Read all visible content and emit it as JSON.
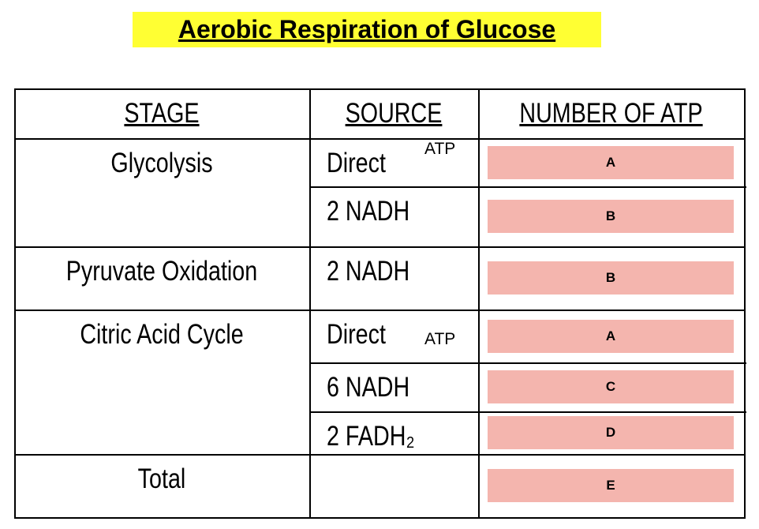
{
  "title": "Aerobic Respiration of Glucose",
  "table": {
    "headers": [
      "STAGE",
      "SOURCE",
      "NUMBER OF ATP"
    ],
    "stages": [
      {
        "stage": "Glycolysis",
        "sources": [
          {
            "source": "Direct",
            "note": "ATP",
            "answer": "A"
          },
          {
            "source": "2 NADH",
            "answer": "B"
          }
        ]
      },
      {
        "stage": "Pyruvate Oxidation",
        "sources": [
          {
            "source": "2 NADH",
            "answer": "B"
          }
        ]
      },
      {
        "stage": "Citric Acid Cycle",
        "sources": [
          {
            "source": "Direct",
            "note": "ATP",
            "answer": "A"
          },
          {
            "source": "6 NADH",
            "answer": "C"
          },
          {
            "source": "2 FADH₂",
            "answer": "D"
          }
        ]
      },
      {
        "stage": "Total",
        "sources": [
          {
            "answer": "E"
          }
        ]
      }
    ]
  }
}
